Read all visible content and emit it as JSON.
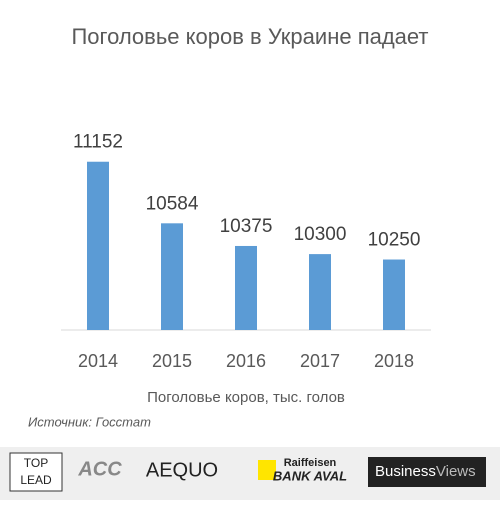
{
  "chart_data": {
    "type": "bar",
    "title": "Поголовье коров в Украине падает",
    "categories": [
      "2014",
      "2015",
      "2016",
      "2017",
      "2018"
    ],
    "values": [
      11152,
      10584,
      10375,
      10300,
      10250
    ],
    "color": "#5b9bd5",
    "ylim": [
      9600,
      11500
    ],
    "x_label": "Поголовье коров, тыс. голов",
    "source": "Источник: Госстат"
  },
  "footer": {
    "logos": [
      "TOP",
      "LEAD",
      "ACC",
      "AEQUO",
      "Raiffeisen",
      "BANK AVAL",
      "Business",
      "Views"
    ]
  }
}
